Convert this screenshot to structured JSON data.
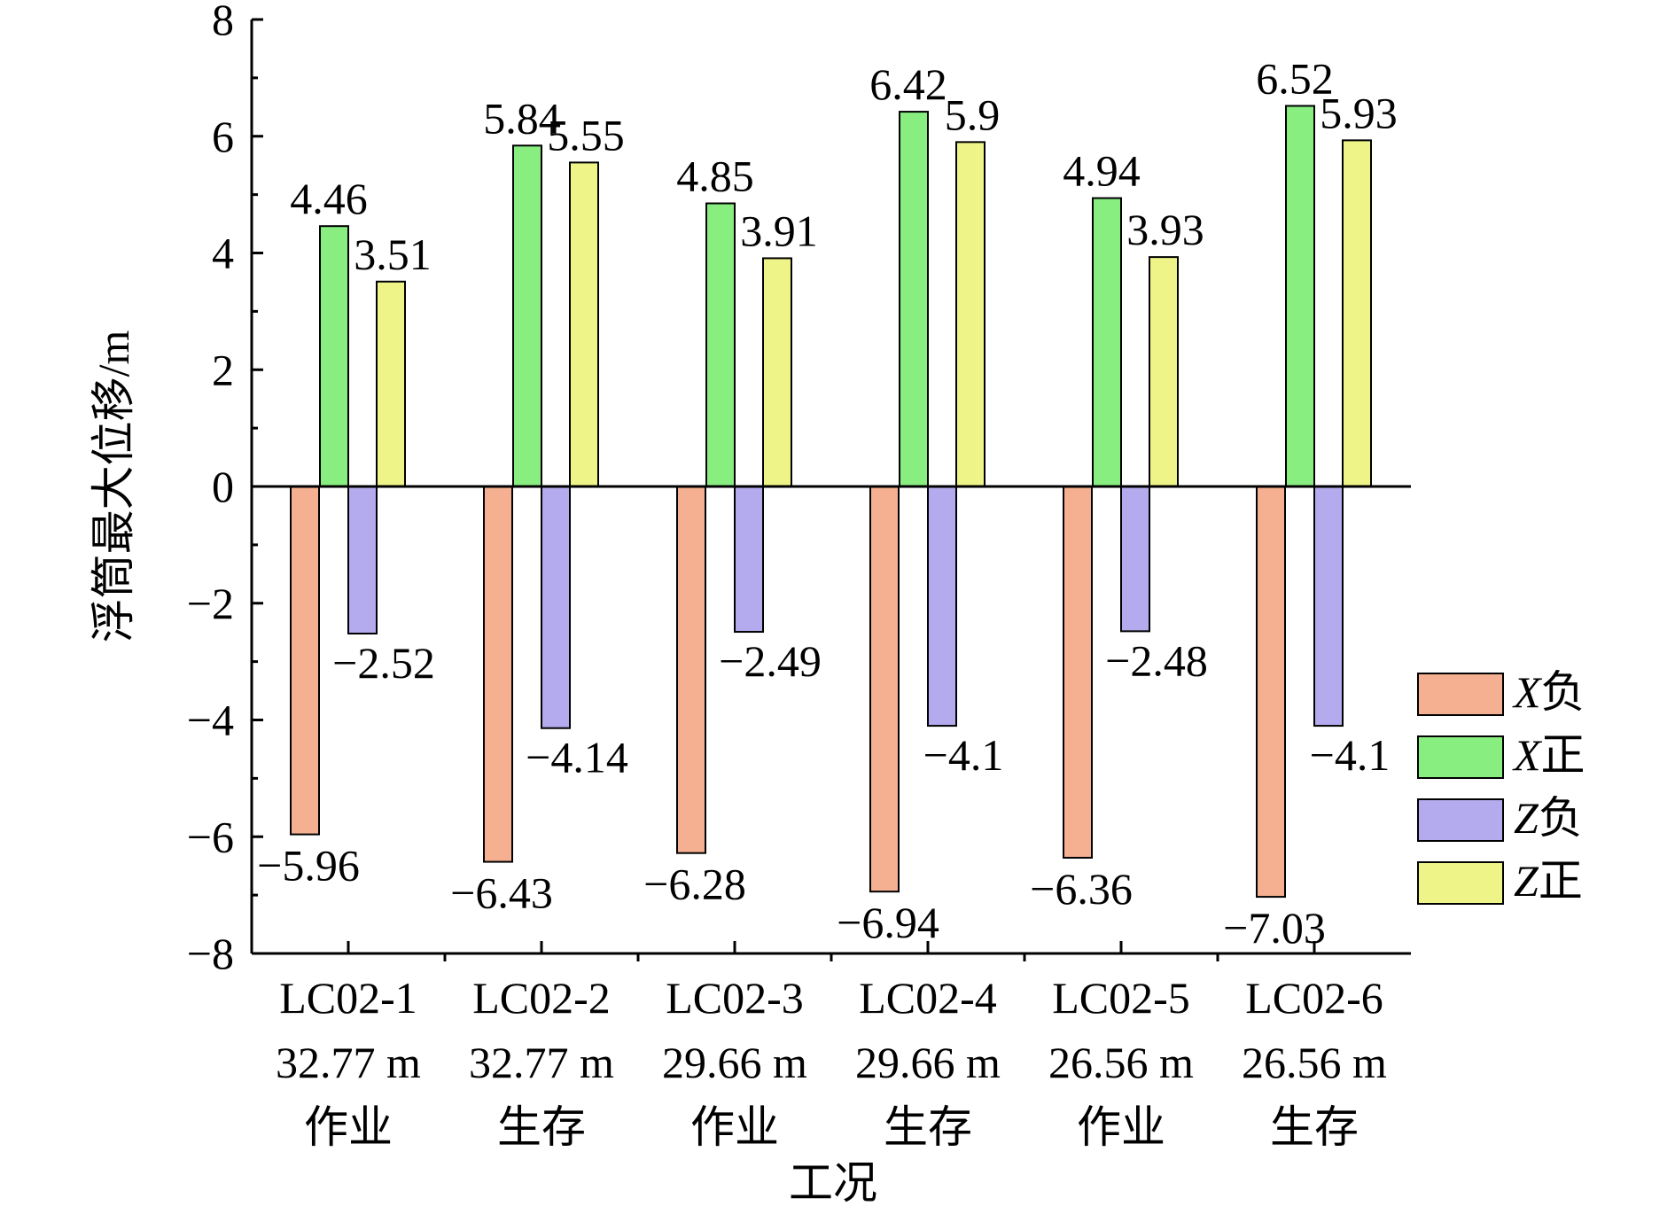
{
  "chart_data": {
    "type": "bar",
    "title": "",
    "xlabel": "工况",
    "ylabel": "浮筒最大位移/m",
    "ylim": [
      -8,
      8
    ],
    "yticks": [
      -8,
      -6,
      -4,
      -2,
      0,
      2,
      4,
      6,
      8
    ],
    "ytick_labels": [
      "−8",
      "−6",
      "−4",
      "−2",
      "0",
      "2",
      "4",
      "6",
      "8"
    ],
    "categories": [
      [
        "LC02-1",
        "32.77 m",
        "作业"
      ],
      [
        "LC02-2",
        "32.77 m",
        "生存"
      ],
      [
        "LC02-3",
        "29.66 m",
        "作业"
      ],
      [
        "LC02-4",
        "29.66 m",
        "生存"
      ],
      [
        "LC02-5",
        "26.56 m",
        "作业"
      ],
      [
        "LC02-6",
        "26.56 m",
        "生存"
      ]
    ],
    "series": [
      {
        "axis": "X",
        "dir": "负",
        "color": "#f4b090",
        "values": [
          -5.96,
          -6.43,
          -6.28,
          -6.94,
          -6.36,
          -7.03
        ],
        "labels": [
          "−5.96",
          "−6.43",
          "−6.28",
          "−6.94",
          "−6.36",
          "−7.03"
        ]
      },
      {
        "axis": "X",
        "dir": "正",
        "color": "#88ee80",
        "values": [
          4.46,
          5.84,
          4.85,
          6.42,
          4.94,
          6.52
        ],
        "labels": [
          "4.46",
          "5.84",
          "4.85",
          "6.42",
          "4.94",
          "6.52"
        ]
      },
      {
        "axis": "Z",
        "dir": "负",
        "color": "#b4aaee",
        "values": [
          -2.52,
          -4.14,
          -2.49,
          -4.1,
          -2.48,
          -4.1
        ],
        "labels": [
          "−2.52",
          "−4.14",
          "−2.49",
          "−4.1",
          "−2.48",
          "−4.1"
        ]
      },
      {
        "axis": "Z",
        "dir": "正",
        "color": "#eef488",
        "values": [
          3.51,
          5.55,
          3.91,
          5.9,
          3.93,
          5.93
        ],
        "labels": [
          "3.51",
          "5.55",
          "3.91",
          "5.9",
          "3.93",
          "5.93"
        ]
      }
    ],
    "legend_position": "right"
  }
}
